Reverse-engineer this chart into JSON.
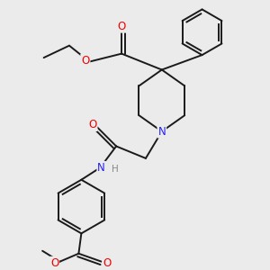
{
  "background_color": "#ebebeb",
  "bond_color": "#1a1a1a",
  "bond_width": 1.4,
  "atom_colors": {
    "O": "#ee0000",
    "N": "#2222ee",
    "C": "#1a1a1a",
    "H": "#888888"
  },
  "figsize": [
    3.0,
    3.0
  ],
  "dpi": 100,
  "xlim": [
    0,
    10
  ],
  "ylim": [
    0,
    10
  ]
}
